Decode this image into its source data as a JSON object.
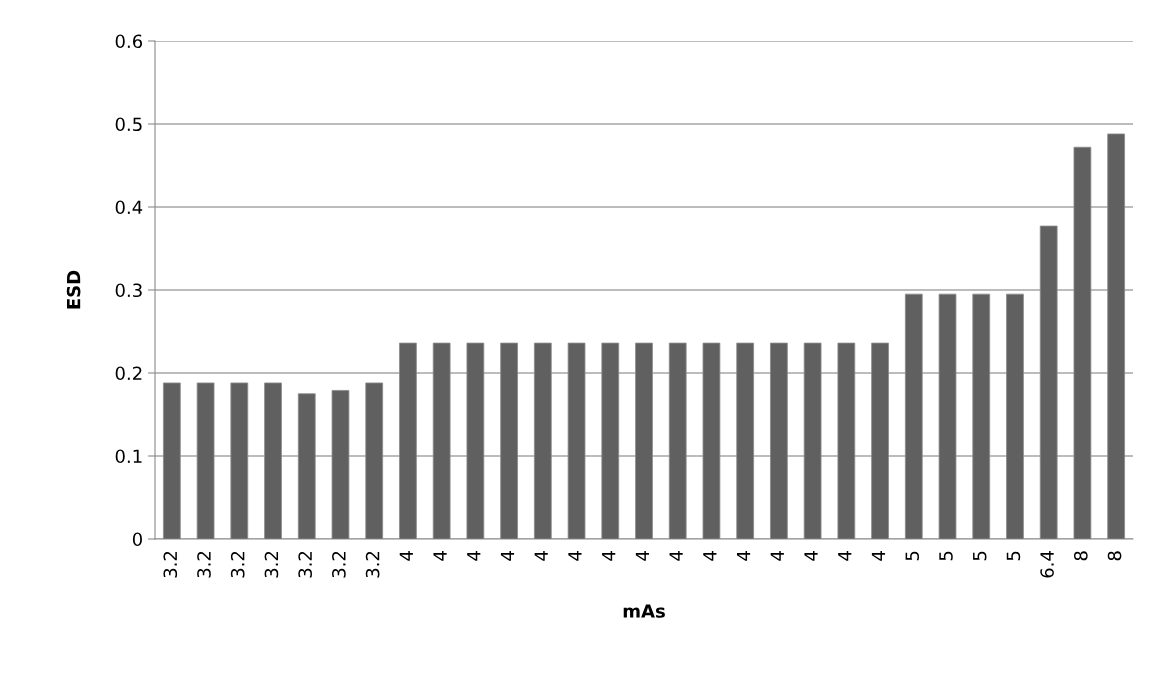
{
  "chart_data": {
    "type": "bar",
    "xlabel": "mAs",
    "ylabel": "ESD",
    "categories": [
      "3.2",
      "3.2",
      "3.2",
      "3.2",
      "3.2",
      "3.2",
      "3.2",
      "4",
      "4",
      "4",
      "4",
      "4",
      "4",
      "4",
      "4",
      "4",
      "4",
      "4",
      "4",
      "4",
      "4",
      "4",
      "5",
      "5",
      "5",
      "5",
      "6.4",
      "8",
      "8"
    ],
    "values": [
      0.188,
      0.188,
      0.188,
      0.188,
      0.175,
      0.179,
      0.188,
      0.236,
      0.236,
      0.236,
      0.236,
      0.236,
      0.236,
      0.236,
      0.236,
      0.236,
      0.236,
      0.236,
      0.236,
      0.236,
      0.236,
      0.236,
      0.295,
      0.295,
      0.295,
      0.295,
      0.377,
      0.472,
      0.488
    ],
    "color": "#606060",
    "ylim": [
      0,
      0.6
    ],
    "yticks": [
      {
        "value": 0,
        "label": "0"
      },
      0.1,
      0.2,
      0.3,
      0.4,
      0.5,
      0.6
    ],
    "grid": "y"
  }
}
